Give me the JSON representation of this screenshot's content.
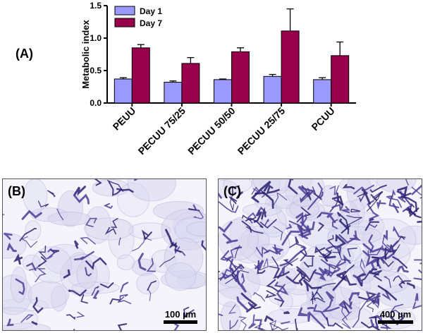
{
  "panels": {
    "a": "(A)",
    "b": "(B)",
    "c": "(C)"
  },
  "chart_data": {
    "type": "bar",
    "title": "",
    "xlabel": "",
    "ylabel": "Metabolic index",
    "ylim": [
      0,
      1.5
    ],
    "yticks": [
      "0.0",
      "0.5",
      "1.0",
      "1.5"
    ],
    "categories": [
      "PEUU",
      "PECUU 75/25",
      "PECUU 50/50",
      "PECUU 25/75",
      "PCUU"
    ],
    "series": [
      {
        "name": "Day 1",
        "color": "#9999ff",
        "values": [
          0.37,
          0.32,
          0.36,
          0.41,
          0.36
        ],
        "errors": [
          0.02,
          0.02,
          0.01,
          0.03,
          0.03
        ]
      },
      {
        "name": "Day 7",
        "color": "#99004c",
        "values": [
          0.85,
          0.61,
          0.79,
          1.11,
          0.73
        ],
        "errors": [
          0.05,
          0.09,
          0.06,
          0.34,
          0.21
        ]
      }
    ],
    "legend_position": "top-left",
    "grid": false
  },
  "scalebars": {
    "b": "100 µm",
    "c": "400 µm"
  }
}
